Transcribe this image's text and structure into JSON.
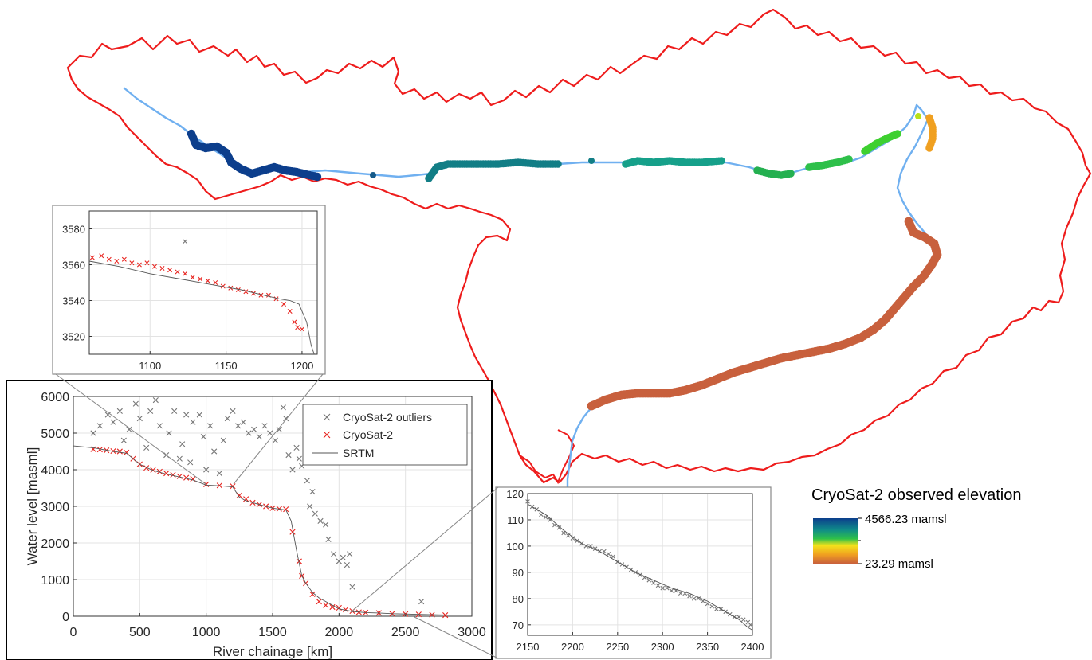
{
  "colors": {
    "basin_outline": "#ee1c1c",
    "river": "#70b0f0",
    "outlier": "#777777",
    "valid": "#e8231e",
    "srtm": "#555555",
    "color_high": "#0c3e8c",
    "color_low": "#c8603d"
  },
  "colorbar": {
    "title": "CryoSat-2 observed elevation",
    "max_label": "4566.23 mamsl",
    "min_label": "23.29 mamsl"
  },
  "main_chart": {
    "xlabel": "River chainage [km]",
    "ylabel": "Water level [masml]",
    "xticks": [
      "0",
      "500",
      "1000",
      "1500",
      "2000",
      "2500",
      "3000"
    ],
    "yticks": [
      "0",
      "1000",
      "2000",
      "3000",
      "4000",
      "5000",
      "6000"
    ],
    "legend": [
      "CryoSat-2 outliers",
      "CryoSat-2",
      "SRTM"
    ]
  },
  "inset_upper": {
    "xticks": [
      "1100",
      "1150",
      "1200"
    ],
    "yticks": [
      "3520",
      "3540",
      "3560",
      "3580"
    ]
  },
  "inset_lower": {
    "xticks": [
      "2150",
      "2200",
      "2250",
      "2300",
      "2350",
      "2400"
    ],
    "yticks": [
      "70",
      "80",
      "90",
      "100",
      "110",
      "120"
    ]
  },
  "chart_data": [
    {
      "type": "scatter",
      "xlabel": "River chainage [km]",
      "ylabel": "Water level [masml]",
      "xlim": [
        0,
        3000
      ],
      "ylim": [
        0,
        6000
      ],
      "grid": true,
      "legend_position": "top-right",
      "series": [
        {
          "name": "CryoSat-2 outliers",
          "marker": "x",
          "points": [
            [
              150,
              5000
            ],
            [
              200,
              5200
            ],
            [
              260,
              5500
            ],
            [
              300,
              5300
            ],
            [
              350,
              5600
            ],
            [
              380,
              4800
            ],
            [
              420,
              5100
            ],
            [
              470,
              5800
            ],
            [
              500,
              5400
            ],
            [
              550,
              4600
            ],
            [
              580,
              5600
            ],
            [
              620,
              5900
            ],
            [
              650,
              5200
            ],
            [
              700,
              4400
            ],
            [
              720,
              5000
            ],
            [
              760,
              5600
            ],
            [
              800,
              4300
            ],
            [
              820,
              4700
            ],
            [
              850,
              5500
            ],
            [
              880,
              4200
            ],
            [
              900,
              5300
            ],
            [
              950,
              5500
            ],
            [
              980,
              4900
            ],
            [
              1000,
              4000
            ],
            [
              1030,
              5200
            ],
            [
              1060,
              4500
            ],
            [
              1100,
              3900
            ],
            [
              1130,
              4800
            ],
            [
              1160,
              5400
            ],
            [
              1200,
              5600
            ],
            [
              1240,
              5200
            ],
            [
              1280,
              5300
            ],
            [
              1320,
              5000
            ],
            [
              1360,
              5100
            ],
            [
              1400,
              4900
            ],
            [
              1440,
              5200
            ],
            [
              1480,
              5000
            ],
            [
              1520,
              4800
            ],
            [
              1550,
              5100
            ],
            [
              1580,
              5700
            ],
            [
              1600,
              5400
            ],
            [
              1620,
              4400
            ],
            [
              1650,
              4000
            ],
            [
              1680,
              4600
            ],
            [
              1700,
              4300
            ],
            [
              1720,
              4100
            ],
            [
              1760,
              3700
            ],
            [
              1780,
              3000
            ],
            [
              1800,
              3400
            ],
            [
              1820,
              2800
            ],
            [
              1860,
              2600
            ],
            [
              1900,
              2500
            ],
            [
              1920,
              2100
            ],
            [
              1960,
              1700
            ],
            [
              2000,
              1500
            ],
            [
              2030,
              1600
            ],
            [
              2060,
              1400
            ],
            [
              2080,
              1700
            ],
            [
              2100,
              800
            ],
            [
              2620,
              400
            ]
          ]
        },
        {
          "name": "CryoSat-2",
          "marker": "x",
          "points": [
            [
              150,
              4560
            ],
            [
              200,
              4550
            ],
            [
              250,
              4530
            ],
            [
              300,
              4510
            ],
            [
              350,
              4500
            ],
            [
              400,
              4470
            ],
            [
              450,
              4300
            ],
            [
              500,
              4150
            ],
            [
              550,
              4050
            ],
            [
              600,
              3990
            ],
            [
              650,
              3950
            ],
            [
              700,
              3900
            ],
            [
              750,
              3860
            ],
            [
              800,
              3820
            ],
            [
              850,
              3780
            ],
            [
              900,
              3750
            ],
            [
              1000,
              3600
            ],
            [
              1100,
              3570
            ],
            [
              1200,
              3550
            ],
            [
              1250,
              3300
            ],
            [
              1300,
              3200
            ],
            [
              1350,
              3100
            ],
            [
              1400,
              3050
            ],
            [
              1450,
              3000
            ],
            [
              1500,
              2950
            ],
            [
              1550,
              2930
            ],
            [
              1600,
              2920
            ],
            [
              1650,
              2300
            ],
            [
              1700,
              1500
            ],
            [
              1720,
              1100
            ],
            [
              1750,
              900
            ],
            [
              1800,
              600
            ],
            [
              1850,
              400
            ],
            [
              1900,
              300
            ],
            [
              1950,
              250
            ],
            [
              2000,
              230
            ],
            [
              2050,
              180
            ],
            [
              2100,
              140
            ],
            [
              2150,
              110
            ],
            [
              2200,
              100
            ],
            [
              2300,
              90
            ],
            [
              2400,
              70
            ],
            [
              2500,
              60
            ],
            [
              2600,
              50
            ],
            [
              2700,
              40
            ],
            [
              2800,
              30
            ]
          ]
        },
        {
          "name": "SRTM",
          "marker": "line",
          "points": [
            [
              0,
              4650
            ],
            [
              150,
              4600
            ],
            [
              300,
              4500
            ],
            [
              400,
              4450
            ],
            [
              450,
              4300
            ],
            [
              500,
              4150
            ],
            [
              600,
              3980
            ],
            [
              700,
              3880
            ],
            [
              800,
              3800
            ],
            [
              900,
              3720
            ],
            [
              1000,
              3580
            ],
            [
              1100,
              3560
            ],
            [
              1200,
              3530
            ],
            [
              1250,
              3250
            ],
            [
              1300,
              3150
            ],
            [
              1400,
              3050
            ],
            [
              1500,
              2950
            ],
            [
              1600,
              2900
            ],
            [
              1640,
              2600
            ],
            [
              1680,
              1800
            ],
            [
              1720,
              1100
            ],
            [
              1750,
              900
            ],
            [
              1800,
              650
            ],
            [
              1850,
              500
            ],
            [
              1900,
              400
            ],
            [
              1950,
              300
            ],
            [
              2000,
              200
            ],
            [
              2100,
              130
            ],
            [
              2200,
              100
            ],
            [
              2300,
              90
            ],
            [
              2400,
              70
            ],
            [
              2600,
              50
            ],
            [
              2800,
              35
            ]
          ]
        }
      ]
    },
    {
      "type": "scatter",
      "xlim": [
        1060,
        1210
      ],
      "ylim": [
        3510,
        3590
      ],
      "grid": true,
      "series": [
        {
          "marker": "x",
          "points": [
            [
              1123,
              3573
            ]
          ]
        },
        {
          "marker": "x",
          "points": [
            [
              1062,
              3564
            ],
            [
              1068,
              3565
            ],
            [
              1073,
              3563
            ],
            [
              1078,
              3562
            ],
            [
              1083,
              3563
            ],
            [
              1088,
              3561
            ],
            [
              1093,
              3560
            ],
            [
              1098,
              3561
            ],
            [
              1103,
              3559
            ],
            [
              1108,
              3558
            ],
            [
              1113,
              3557
            ],
            [
              1118,
              3556
            ],
            [
              1123,
              3555
            ],
            [
              1128,
              3553
            ],
            [
              1133,
              3552
            ],
            [
              1138,
              3551
            ],
            [
              1143,
              3550
            ],
            [
              1148,
              3548
            ],
            [
              1153,
              3547
            ],
            [
              1158,
              3546
            ],
            [
              1163,
              3545
            ],
            [
              1168,
              3544
            ],
            [
              1173,
              3543
            ],
            [
              1178,
              3543
            ],
            [
              1183,
              3541
            ],
            [
              1188,
              3538
            ],
            [
              1192,
              3534
            ],
            [
              1195,
              3528
            ],
            [
              1197,
              3525
            ],
            [
              1200,
              3524
            ]
          ]
        },
        {
          "marker": "line",
          "points": [
            [
              1060,
              3562
            ],
            [
              1080,
              3559
            ],
            [
              1100,
              3555
            ],
            [
              1120,
              3552
            ],
            [
              1140,
              3549
            ],
            [
              1160,
              3546
            ],
            [
              1175,
              3543
            ],
            [
              1185,
              3541
            ],
            [
              1192,
              3540
            ],
            [
              1198,
              3538
            ],
            [
              1203,
              3528
            ],
            [
              1206,
              3515
            ],
            [
              1208,
              3510
            ]
          ]
        }
      ]
    },
    {
      "type": "scatter",
      "xlim": [
        2150,
        2400
      ],
      "ylim": [
        66,
        120
      ],
      "grid": true,
      "series": [
        {
          "marker": "x",
          "points": [
            [
              2150,
              117
            ],
            [
              2155,
              115
            ],
            [
              2160,
              114
            ],
            [
              2165,
              112
            ],
            [
              2170,
              111
            ],
            [
              2175,
              110
            ],
            [
              2180,
              108
            ],
            [
              2185,
              107
            ],
            [
              2190,
              105
            ],
            [
              2195,
              104
            ],
            [
              2200,
              103
            ],
            [
              2205,
              102
            ],
            [
              2210,
              101
            ],
            [
              2215,
              100
            ],
            [
              2220,
              100
            ],
            [
              2225,
              99
            ],
            [
              2230,
              98
            ],
            [
              2235,
              98
            ],
            [
              2240,
              97
            ],
            [
              2245,
              96
            ],
            [
              2250,
              94
            ],
            [
              2255,
              93
            ],
            [
              2260,
              92
            ],
            [
              2265,
              91
            ],
            [
              2270,
              90
            ],
            [
              2275,
              89
            ],
            [
              2280,
              88
            ],
            [
              2285,
              87
            ],
            [
              2290,
              86
            ],
            [
              2295,
              85
            ],
            [
              2300,
              84
            ],
            [
              2305,
              84
            ],
            [
              2310,
              83
            ],
            [
              2315,
              83
            ],
            [
              2320,
              82
            ],
            [
              2325,
              82
            ],
            [
              2330,
              81
            ],
            [
              2335,
              80
            ],
            [
              2340,
              80
            ],
            [
              2345,
              79
            ],
            [
              2350,
              78
            ],
            [
              2355,
              77
            ],
            [
              2360,
              76
            ],
            [
              2365,
              76
            ],
            [
              2370,
              75
            ],
            [
              2375,
              74
            ],
            [
              2380,
              73
            ],
            [
              2385,
              73
            ],
            [
              2390,
              72
            ],
            [
              2395,
              71
            ],
            [
              2398,
              70
            ]
          ]
        },
        {
          "marker": "line",
          "points": [
            [
              2150,
              116
            ],
            [
              2170,
              112
            ],
            [
              2190,
              106
            ],
            [
              2210,
              101
            ],
            [
              2230,
              98
            ],
            [
              2250,
              94
            ],
            [
              2270,
              90
            ],
            [
              2290,
              87
            ],
            [
              2310,
              84
            ],
            [
              2330,
              82
            ],
            [
              2350,
              79
            ],
            [
              2370,
              75
            ],
            [
              2385,
              72
            ],
            [
              2395,
              69
            ],
            [
              2400,
              68
            ]
          ]
        }
      ]
    }
  ]
}
